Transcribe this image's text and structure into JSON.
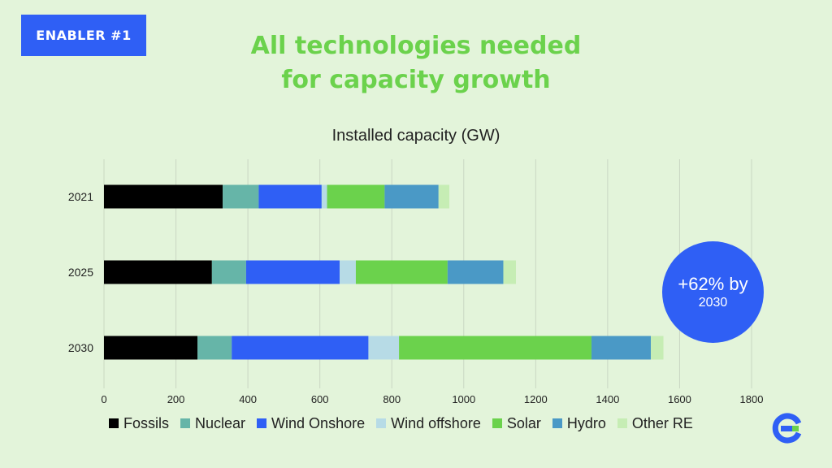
{
  "badge": {
    "label": "ENABLER #1"
  },
  "title": {
    "line1": "All technologies needed",
    "line2": "for capacity growth"
  },
  "chart_data": {
    "type": "bar",
    "orientation": "horizontal",
    "stacked": true,
    "title": "Installed capacity (GW)",
    "xlabel": "",
    "ylabel": "",
    "xlim": [
      0,
      1800
    ],
    "xticks": [
      0,
      200,
      400,
      600,
      800,
      1000,
      1200,
      1400,
      1600,
      1800
    ],
    "categories": [
      "2021",
      "2025",
      "2030"
    ],
    "grid": true,
    "legend": "bottom",
    "series": [
      {
        "name": "Fossils",
        "color": "#000000",
        "values": [
          330,
          300,
          260
        ]
      },
      {
        "name": "Nuclear",
        "color": "#66b5a8",
        "values": [
          100,
          95,
          95
        ]
      },
      {
        "name": "Wind Onshore",
        "color": "#2f5ff5",
        "values": [
          175,
          260,
          380
        ]
      },
      {
        "name": "Wind offshore",
        "color": "#b7dbe6",
        "values": [
          15,
          45,
          85
        ]
      },
      {
        "name": "Solar",
        "color": "#6bd24c",
        "values": [
          160,
          255,
          535
        ]
      },
      {
        "name": "Hydro",
        "color": "#4a99c6",
        "values": [
          150,
          155,
          165
        ]
      },
      {
        "name": "Other RE",
        "color": "#c6edb4",
        "values": [
          30,
          35,
          35
        ]
      }
    ]
  },
  "callout": {
    "line1": "+62% by",
    "line2": "2030"
  },
  "logo": {
    "icon": "e-logo-icon",
    "color": "#2f5ff5"
  }
}
